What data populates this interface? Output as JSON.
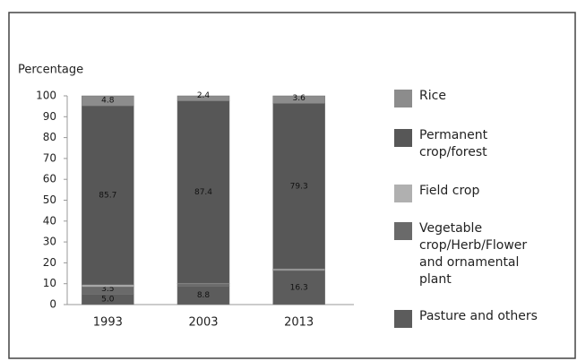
{
  "chart_data": {
    "type": "stacked_bar",
    "y_label": "Percentage",
    "categories": [
      "1993",
      "2003",
      "2013"
    ],
    "series": [
      {
        "name": "Pasture and others",
        "color": "#5c5c5c",
        "values": [
          5.0,
          8.8,
          16.3
        ],
        "value_labels": [
          "5.0",
          "8.8",
          "16.3"
        ]
      },
      {
        "name": "Vegetable crop/Herb/Flower and ornamental plant",
        "color": "#6a6a6a",
        "values": [
          3.5,
          1.1,
          0.1
        ],
        "value_labels": [
          "3.5",
          "1.1",
          "0.1"
        ]
      },
      {
        "name": "Field crop",
        "color": "#b0b0b0",
        "values": [
          1.0,
          0.3,
          0.7
        ],
        "value_labels": [
          "1.0",
          "0.3",
          "0.7"
        ]
      },
      {
        "name": "Permanent crop/forest",
        "color": "#575757",
        "values": [
          85.7,
          87.4,
          79.3
        ],
        "value_labels": [
          "85.7",
          "87.4",
          "79.3"
        ]
      },
      {
        "name": "Rice",
        "color": "#8c8c8c",
        "values": [
          4.8,
          2.4,
          3.6
        ],
        "value_labels": [
          "4.8",
          "2.4",
          "3.6"
        ]
      }
    ],
    "ylim": [
      0,
      100
    ],
    "yticks": [
      0,
      10,
      20,
      30,
      40,
      50,
      60,
      70,
      80,
      90,
      100
    ],
    "grid": false
  }
}
